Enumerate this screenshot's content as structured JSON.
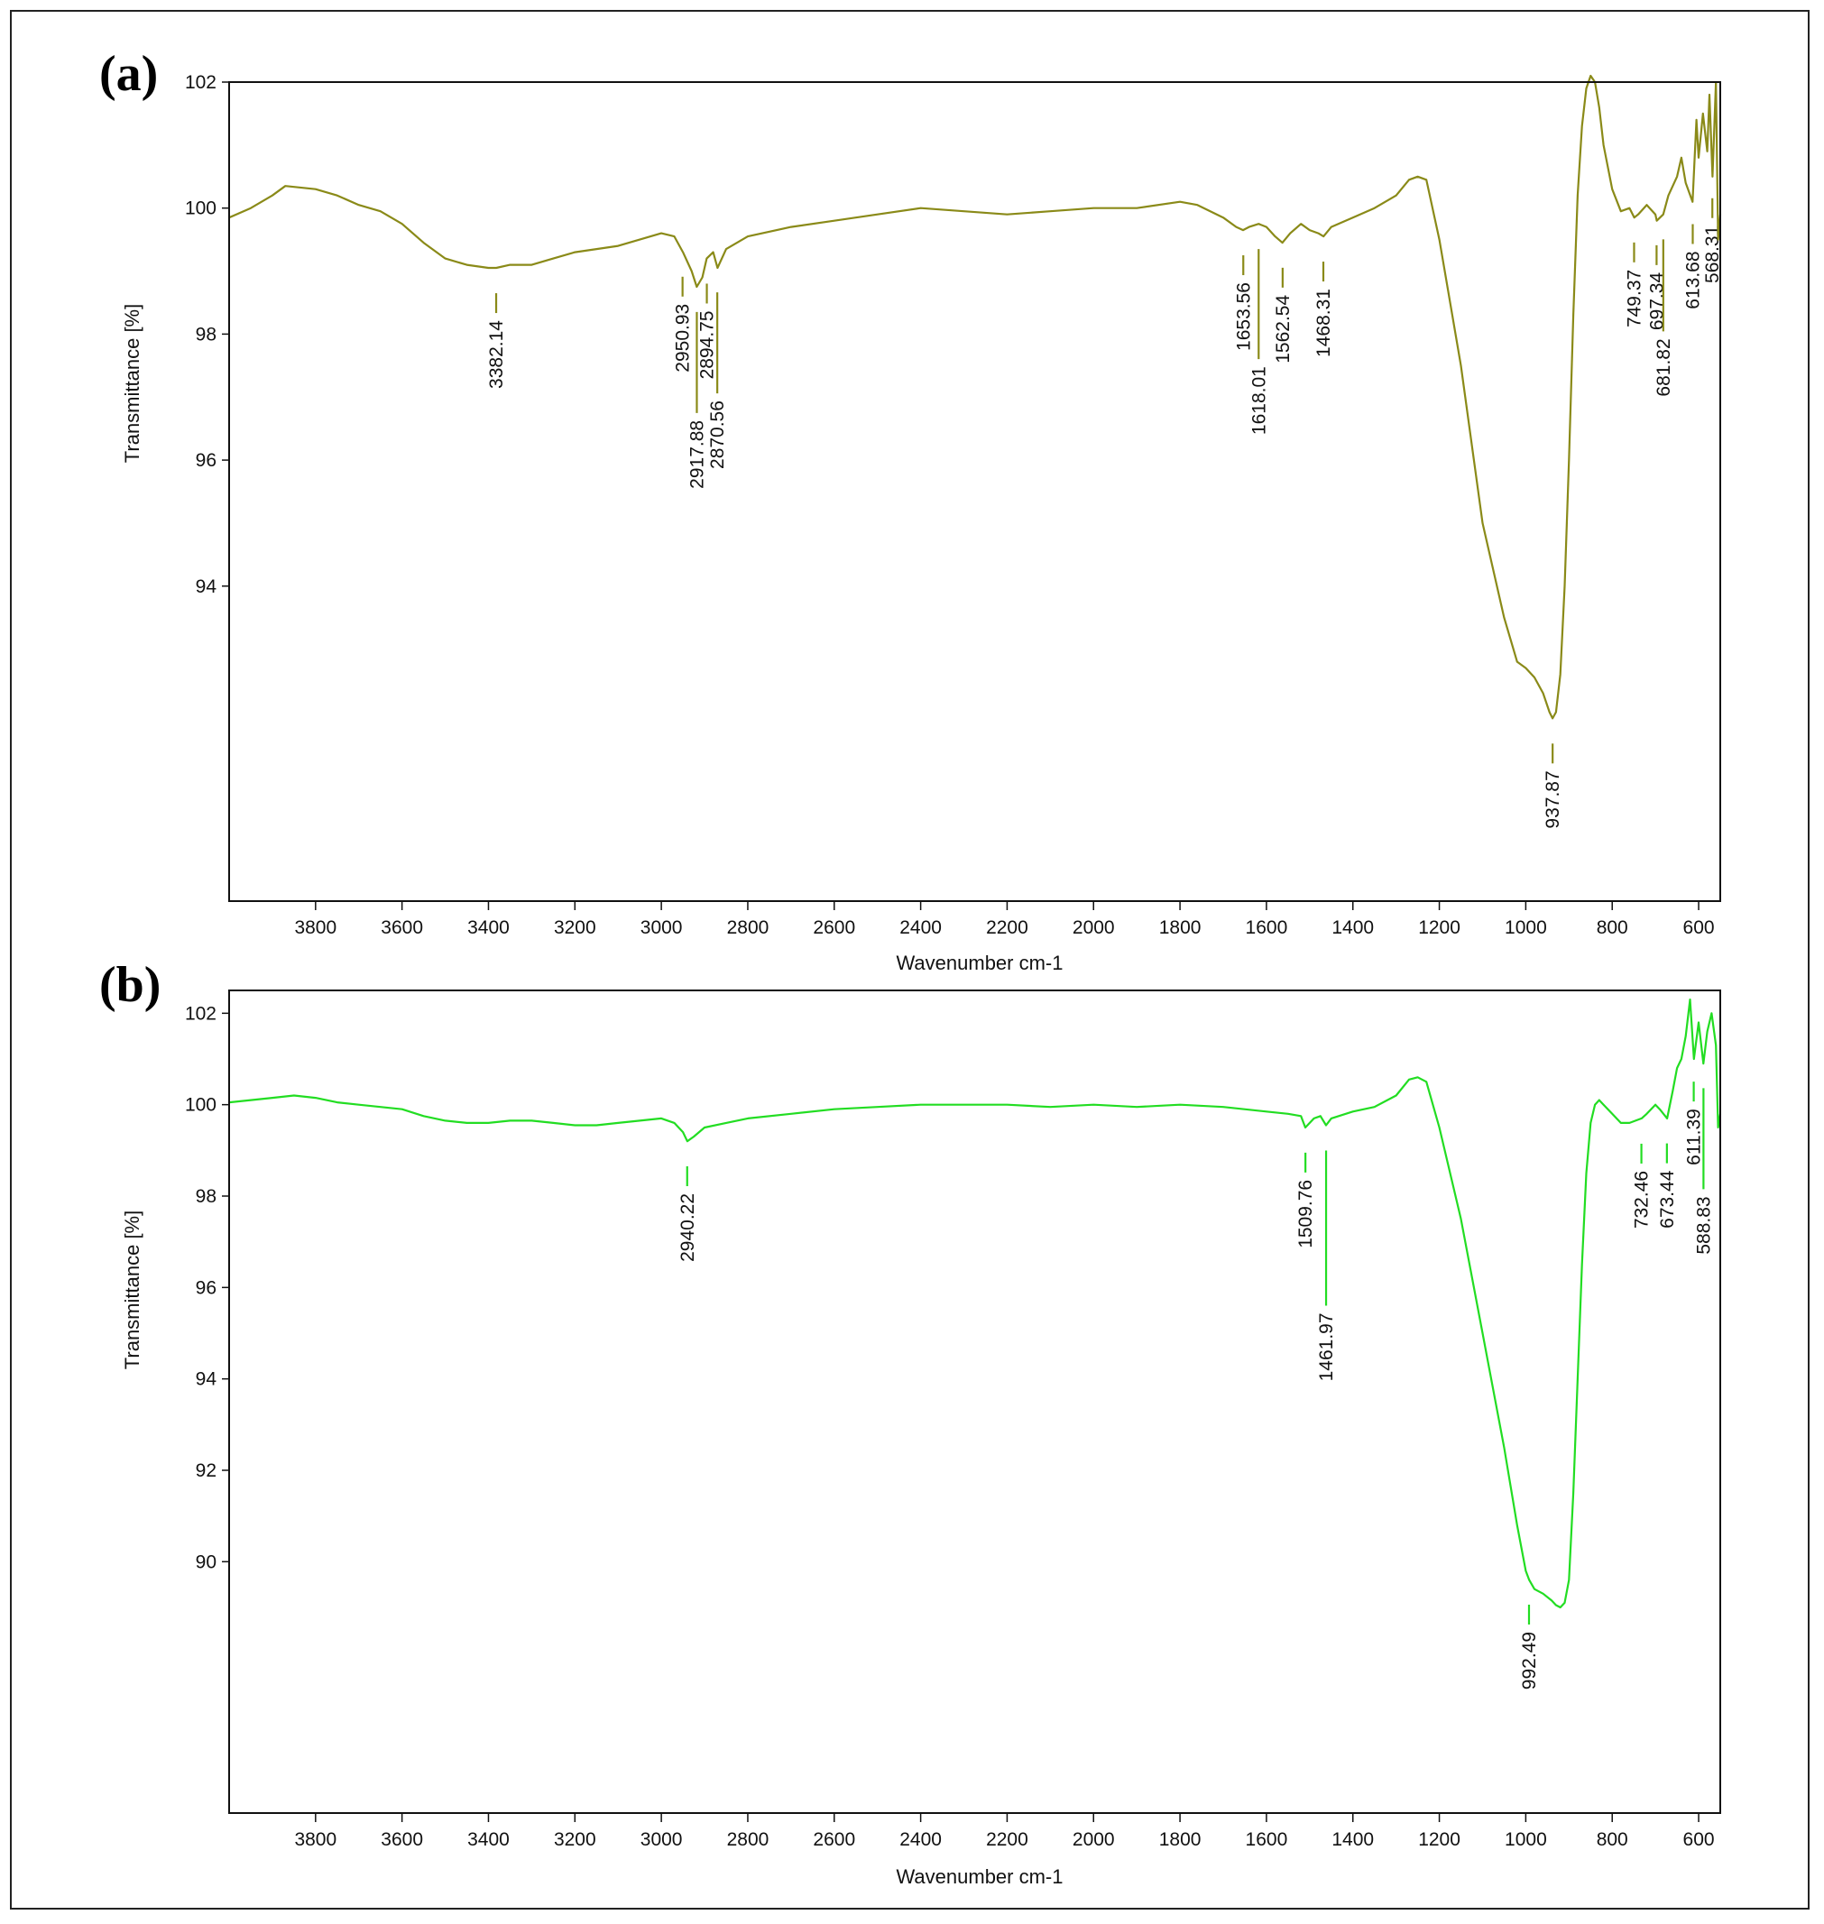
{
  "chart_data": [
    {
      "type": "line",
      "panel_label": "(a)",
      "xlabel": "Wavenumber cm-1",
      "ylabel": "Transmittance [%]",
      "xlim": [
        4000,
        550
      ],
      "ylim": [
        89.0,
        102.0
      ],
      "x_ticks": [
        3800,
        3600,
        3400,
        3200,
        3000,
        2800,
        2600,
        2400,
        2200,
        2000,
        1800,
        1600,
        1400,
        1200,
        1000,
        800,
        600
      ],
      "y_ticks": [
        94,
        96,
        98,
        100,
        102
      ],
      "grid": false,
      "series_color": "#8a8a18",
      "series": [
        {
          "x": [
            4000,
            3950,
            3900,
            3870,
            3800,
            3750,
            3700,
            3650,
            3600,
            3550,
            3500,
            3450,
            3400,
            3382,
            3350,
            3300,
            3250,
            3200,
            3150,
            3100,
            3050,
            3000,
            2970,
            2950,
            2930,
            2918,
            2905,
            2895,
            2880,
            2870,
            2850,
            2800,
            2700,
            2600,
            2500,
            2400,
            2300,
            2200,
            2100,
            2000,
            1900,
            1800,
            1760,
            1700,
            1670,
            1654,
            1640,
            1618,
            1600,
            1580,
            1563,
            1545,
            1520,
            1500,
            1480,
            1468,
            1450,
            1400,
            1350,
            1300,
            1270,
            1250,
            1230,
            1200,
            1150,
            1100,
            1050,
            1020,
            1000,
            980,
            960,
            945,
            938,
            930,
            920,
            910,
            900,
            890,
            880,
            870,
            860,
            850,
            840,
            830,
            820,
            800,
            780,
            760,
            749,
            740,
            720,
            700,
            697,
            682,
            670,
            650,
            640,
            630,
            614,
            605,
            600,
            590,
            580,
            575,
            568,
            560,
            555,
            550
          ],
          "y": [
            99.85,
            100.0,
            100.2,
            100.35,
            100.3,
            100.2,
            100.05,
            99.95,
            99.75,
            99.45,
            99.2,
            99.1,
            99.05,
            99.05,
            99.1,
            99.1,
            99.2,
            99.3,
            99.35,
            99.4,
            99.5,
            99.6,
            99.55,
            99.3,
            99.0,
            98.75,
            98.9,
            99.2,
            99.3,
            99.05,
            99.35,
            99.55,
            99.7,
            99.8,
            99.9,
            100.0,
            99.95,
            99.9,
            99.95,
            100.0,
            100.0,
            100.1,
            100.05,
            99.85,
            99.7,
            99.65,
            99.7,
            99.75,
            99.7,
            99.55,
            99.45,
            99.6,
            99.75,
            99.65,
            99.6,
            99.55,
            99.7,
            99.85,
            100.0,
            100.2,
            100.45,
            100.5,
            100.45,
            99.5,
            97.5,
            95.0,
            93.5,
            92.8,
            92.7,
            92.55,
            92.3,
            92.0,
            91.9,
            92.0,
            92.6,
            94.0,
            96.0,
            98.3,
            100.2,
            101.3,
            101.9,
            102.1,
            102.0,
            101.6,
            101.0,
            100.3,
            99.95,
            100.0,
            99.85,
            99.9,
            100.05,
            99.9,
            99.8,
            99.9,
            100.2,
            100.5,
            100.8,
            100.4,
            100.1,
            101.4,
            100.8,
            101.5,
            100.9,
            101.8,
            100.5,
            102.0,
            99.5,
            99.9
          ]
        }
      ],
      "peak_labels": [
        {
          "x": 3382.14,
          "text": "3382.14"
        },
        {
          "x": 2950.93,
          "text": "2950.93"
        },
        {
          "x": 2917.88,
          "text": "2917.88"
        },
        {
          "x": 2894.75,
          "text": "2894.75"
        },
        {
          "x": 2870.56,
          "text": "2870.56"
        },
        {
          "x": 1653.56,
          "text": "1653.56"
        },
        {
          "x": 1618.01,
          "text": "1618.01"
        },
        {
          "x": 1562.54,
          "text": "1562.54"
        },
        {
          "x": 1468.31,
          "text": "1468.31"
        },
        {
          "x": 937.87,
          "text": "937.87"
        },
        {
          "x": 749.37,
          "text": "749.37"
        },
        {
          "x": 697.34,
          "text": "697.34"
        },
        {
          "x": 681.82,
          "text": "681.82"
        },
        {
          "x": 613.68,
          "text": "613.68"
        },
        {
          "x": 568.31,
          "text": "568.31"
        }
      ]
    },
    {
      "type": "line",
      "panel_label": "(b)",
      "xlabel": "Wavenumber cm-1",
      "ylabel": "Transmittance [%]",
      "xlim": [
        4000,
        550
      ],
      "ylim": [
        84.5,
        102.5
      ],
      "x_ticks": [
        3800,
        3600,
        3400,
        3200,
        3000,
        2800,
        2600,
        2400,
        2200,
        2000,
        1800,
        1600,
        1400,
        1200,
        1000,
        800,
        600
      ],
      "y_ticks": [
        90,
        92,
        94,
        96,
        98,
        100,
        102
      ],
      "grid": false,
      "series_color": "#22dd22",
      "series": [
        {
          "x": [
            4000,
            3950,
            3900,
            3850,
            3800,
            3750,
            3700,
            3650,
            3600,
            3550,
            3500,
            3450,
            3400,
            3350,
            3300,
            3250,
            3200,
            3150,
            3100,
            3050,
            3000,
            2970,
            2950,
            2940,
            2925,
            2900,
            2850,
            2800,
            2700,
            2600,
            2500,
            2400,
            2300,
            2200,
            2100,
            2000,
            1900,
            1800,
            1700,
            1600,
            1550,
            1520,
            1510,
            1490,
            1475,
            1462,
            1450,
            1400,
            1350,
            1300,
            1270,
            1250,
            1230,
            1200,
            1150,
            1100,
            1050,
            1020,
            1000,
            992,
            980,
            960,
            940,
            930,
            920,
            910,
            900,
            890,
            880,
            870,
            860,
            850,
            840,
            830,
            820,
            800,
            780,
            760,
            732,
            720,
            700,
            690,
            673,
            660,
            650,
            640,
            630,
            620,
            611,
            600,
            589,
            580,
            570,
            560,
            555,
            550
          ],
          "y": [
            100.05,
            100.1,
            100.15,
            100.2,
            100.15,
            100.05,
            100.0,
            99.95,
            99.9,
            99.75,
            99.65,
            99.6,
            99.6,
            99.65,
            99.65,
            99.6,
            99.55,
            99.55,
            99.6,
            99.65,
            99.7,
            99.6,
            99.4,
            99.2,
            99.3,
            99.5,
            99.6,
            99.7,
            99.8,
            99.9,
            99.95,
            100.0,
            100.0,
            100.0,
            99.95,
            100.0,
            99.95,
            100.0,
            99.95,
            99.85,
            99.8,
            99.75,
            99.5,
            99.7,
            99.75,
            99.55,
            99.7,
            99.85,
            99.95,
            100.2,
            100.55,
            100.6,
            100.5,
            99.5,
            97.5,
            95.0,
            92.5,
            90.8,
            89.8,
            89.6,
            89.4,
            89.3,
            89.15,
            89.05,
            89.0,
            89.1,
            89.6,
            91.5,
            94.0,
            96.5,
            98.5,
            99.6,
            100.0,
            100.1,
            100.0,
            99.8,
            99.6,
            99.6,
            99.7,
            99.8,
            100.0,
            99.9,
            99.7,
            100.3,
            100.8,
            101.0,
            101.5,
            102.3,
            101.0,
            101.8,
            100.9,
            101.6,
            102.0,
            101.3,
            99.5,
            99.8
          ]
        }
      ],
      "peak_labels": [
        {
          "x": 2940.22,
          "text": "2940.22"
        },
        {
          "x": 1509.76,
          "text": "1509.76"
        },
        {
          "x": 1461.97,
          "text": "1461.97"
        },
        {
          "x": 992.49,
          "text": "992.49"
        },
        {
          "x": 732.46,
          "text": "732.46"
        },
        {
          "x": 673.44,
          "text": "673.44"
        },
        {
          "x": 611.39,
          "text": "611.39"
        },
        {
          "x": 588.83,
          "text": "588.83"
        }
      ]
    }
  ]
}
